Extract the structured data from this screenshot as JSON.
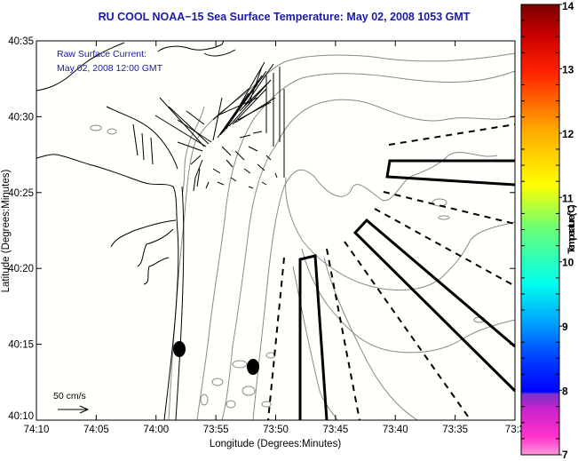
{
  "title": "RU COOL  NOAA−15  Sea Surface Temperature:  May 02, 2008 1053 GMT",
  "annotation": {
    "line1": "Raw Surface Current:",
    "line2": "May 02, 2008 12:00 GMT"
  },
  "scale_arrow_label": "50 cm/s",
  "map": {
    "xlabel": "Longitude (Degrees:Minutes)",
    "ylabel": "Latitude (Degrees:Minutes)",
    "x_ticks": [
      "74:10",
      "74:05",
      "74:00",
      "73:55",
      "73:50",
      "73:45",
      "73:40",
      "73:35",
      "73:3"
    ],
    "y_ticks": [
      "40:35",
      "40:30",
      "40:25",
      "40:20",
      "40:15",
      "40:10"
    ]
  },
  "colorbar": {
    "label": "Temperature (°C)",
    "min": 7,
    "max": 14,
    "ticks": [
      "14",
      "13",
      "12",
      "11",
      "10",
      "9",
      "8",
      "7"
    ],
    "colors": [
      "#ff99dd",
      "#ff22cc",
      "#8822cc",
      "#0000ff",
      "#00aaff",
      "#00ffee",
      "#66ff77",
      "#ffff00",
      "#ffaa00",
      "#ff2200",
      "#cc0000",
      "#880000"
    ]
  },
  "chart_data": {
    "type": "map",
    "title": "RU COOL  NOAA-15  Sea Surface Temperature:  May 02, 2008 1053 GMT",
    "xlabel": "Longitude (Degrees:Minutes)",
    "ylabel": "Latitude (Degrees:Minutes)",
    "xlim": [
      "74:10",
      "73:30"
    ],
    "ylim": [
      "40:10",
      "40:35"
    ],
    "colorbar_range": [
      7,
      14
    ],
    "colorbar_label": "Temperature (°C)",
    "scale_vector": "50 cm/s"
  }
}
